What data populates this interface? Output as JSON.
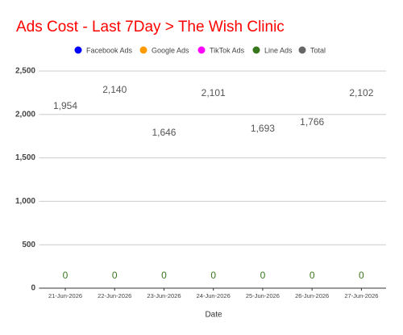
{
  "chart_data": {
    "type": "line",
    "title": "Ads Cost - Last 7Day > The Wish Clinic",
    "x_label": "Date",
    "categories": [
      "21-Jun-2026",
      "22-Jun-2026",
      "23-Jun-2026",
      "24-Jun-2026",
      "25-Jun-2026",
      "26-Jun-2026",
      "27-Jun-2026"
    ],
    "series": [
      {
        "name": "Facebook Ads",
        "color": "#0000ff",
        "values": [
          0,
          0,
          0,
          0,
          0,
          0,
          0
        ],
        "data_labels": false
      },
      {
        "name": "Google Ads",
        "color": "#ff9900",
        "values": [
          0,
          0,
          0,
          0,
          0,
          0,
          0
        ],
        "data_labels": false
      },
      {
        "name": "TikTok Ads",
        "color": "#ff00ff",
        "values": [
          0,
          0,
          0,
          0,
          0,
          0,
          0
        ],
        "data_labels": false
      },
      {
        "name": "Line Ads",
        "color": "#38761d",
        "values": [
          0,
          0,
          0,
          0,
          0,
          0,
          0
        ],
        "data_labels": true
      },
      {
        "name": "Total",
        "color": "#6d5a44",
        "legend_color": "#666666",
        "values": [
          1954,
          2140,
          1646,
          2101,
          1693,
          1766,
          2102
        ],
        "value_labels": [
          "1,954",
          "2,140",
          "1,646",
          "2,101",
          "1,693",
          "1,766",
          "2,102"
        ],
        "data_labels": true
      }
    ],
    "ylim": [
      0,
      2500
    ],
    "yticks": [
      0,
      500,
      {
        "value": 1000,
        "label": "1,000"
      },
      {
        "value": 1500,
        "label": "1,500"
      },
      {
        "value": 2000,
        "label": "2,000"
      },
      {
        "value": 2500,
        "label": "2,500"
      }
    ],
    "grid": true,
    "legend": "top",
    "title_color": "#ff0000"
  }
}
